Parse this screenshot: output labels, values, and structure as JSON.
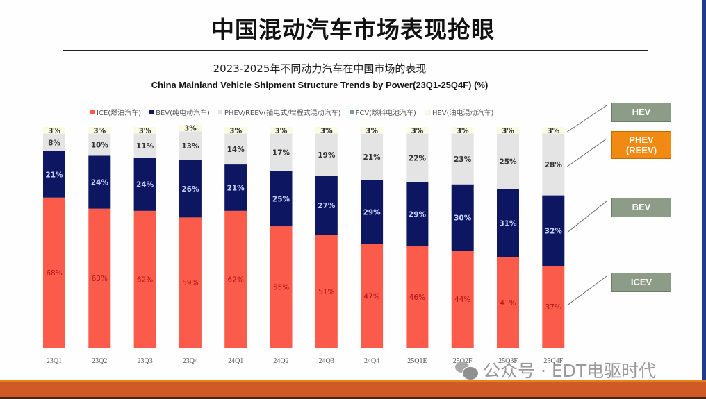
{
  "slide": {
    "main_title": "中国混动汽车市场表现抢眼",
    "subtitle_cn": "2023-2025年不同动力汽车在中国市场的表现",
    "subtitle_en": "China Mainland Vehicle Shipment Structure Trends by Power(23Q1-25Q4F) (%)",
    "watermark": "公众号 · EDT电驱时代",
    "callouts": [
      {
        "label": "HEV",
        "color": "#8d9c86"
      },
      {
        "label": "PHEV\n(REEV)",
        "color": "#f08a12"
      },
      {
        "label": "BEV",
        "color": "#8d9c86"
      },
      {
        "label": "ICEV",
        "color": "#8d9c86"
      }
    ]
  },
  "legend": [
    {
      "label": "ICE(燃油汽车)",
      "color": "#fb5b4b"
    },
    {
      "label": "BEV(纯电动汽车)",
      "color": "#0d1660"
    },
    {
      "label": "PHEV/REEV(插电式/增程式混动汽车)",
      "color": "#e4e4e4"
    },
    {
      "label": "FCV(燃料电池汽车)",
      "color": "#7aa38e"
    },
    {
      "label": "HEV(油电混动汽车)",
      "color": "#fbfbe2"
    }
  ],
  "chart_data": {
    "type": "bar",
    "stacked": true,
    "title": "China Mainland Vehicle Shipment Structure Trends by Power(23Q1-25Q4F) (%)",
    "subtitle": "2023-2025年不同动力汽车在中国市场的表现",
    "xlabel": "",
    "ylabel": "",
    "ylim": [
      0,
      100
    ],
    "grid": false,
    "legend_position": "top",
    "categories": [
      "23Q1",
      "23Q2",
      "23Q3",
      "23Q4",
      "24Q1",
      "24Q2",
      "24Q3",
      "24Q4",
      "25Q1E",
      "25Q2F",
      "25Q3F",
      "25Q4F"
    ],
    "series": [
      {
        "name": "ICE(燃油汽车)",
        "color": "#fb5b4b",
        "label_color": "#b01515",
        "values": [
          68,
          63,
          62,
          59,
          62,
          55,
          51,
          47,
          46,
          44,
          41,
          37
        ]
      },
      {
        "name": "BEV(纯电动汽车)",
        "color": "#0d1660",
        "label_color": "#c8d4ff",
        "values": [
          21,
          24,
          24,
          26,
          21,
          25,
          27,
          29,
          29,
          30,
          31,
          32
        ]
      },
      {
        "name": "PHEV/REEV(插电式/增程式混动汽车)",
        "color": "#e4e4e4",
        "label_color": "#333333",
        "values": [
          8,
          10,
          11,
          13,
          14,
          17,
          19,
          21,
          22,
          23,
          25,
          28
        ]
      },
      {
        "name": "FCV(燃料电池汽车)",
        "color": "#7aa38e",
        "label_color": "#333333",
        "values": [
          0,
          0,
          0,
          0,
          0,
          0,
          0,
          0,
          0,
          0,
          0,
          0
        ]
      },
      {
        "name": "HEV(油电混动汽车)",
        "color": "#fbfbe2",
        "label_color": "#333333",
        "values": [
          3,
          3,
          3,
          3,
          3,
          3,
          3,
          3,
          3,
          3,
          3,
          3
        ]
      }
    ],
    "data_label_format": "{v}%"
  }
}
